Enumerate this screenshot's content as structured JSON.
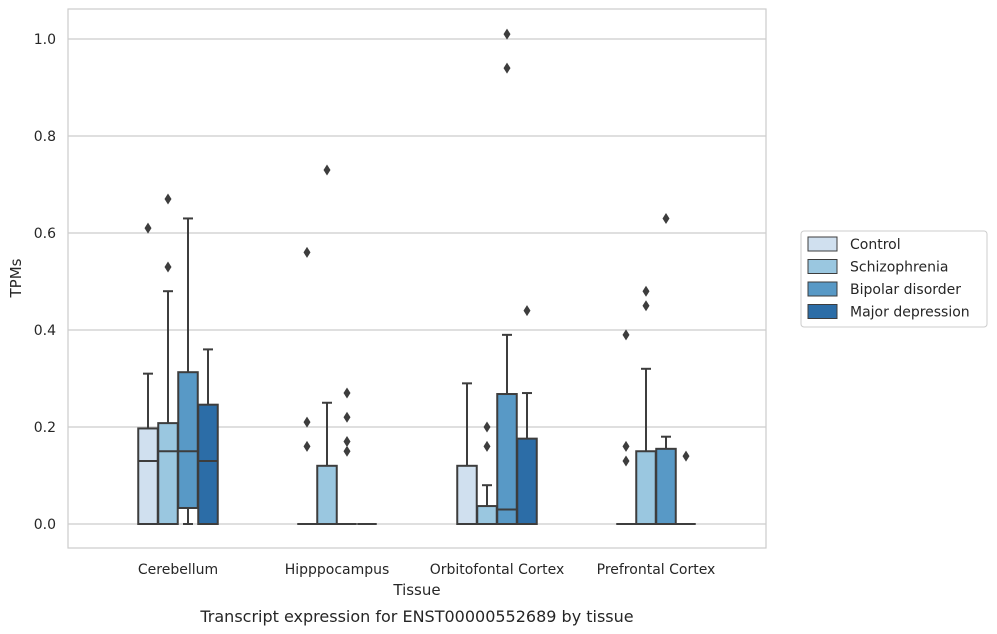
{
  "chart_data": {
    "type": "box",
    "title": "",
    "caption": "Transcript expression for ENST00000552689 by tissue",
    "xlabel": "Tissue",
    "ylabel": "TPMs",
    "ylim": [
      -0.05,
      1.06
    ],
    "yticks": [
      0.0,
      0.2,
      0.4,
      0.6,
      0.8,
      1.0
    ],
    "ytick_labels": [
      "0.0",
      "0.2",
      "0.4",
      "0.6",
      "0.8",
      "1.0"
    ],
    "grid": "horizontal",
    "legend_position": "right",
    "categories": [
      "Cerebellum",
      "Hipppocampus",
      "Orbitofontal Cortex",
      "Prefrontal Cortex"
    ],
    "series": [
      {
        "name": "Control",
        "color": "#d0e0ef",
        "boxes": [
          {
            "q1": 0.0,
            "median": 0.13,
            "q3": 0.197,
            "whislo": 0.0,
            "whishi": 0.31,
            "fliers": [
              0.61
            ]
          },
          {
            "q1": 0.0,
            "median": 0.0,
            "q3": 0.0,
            "whislo": 0.0,
            "whishi": 0.0,
            "fliers": [
              0.56,
              0.21,
              0.16
            ]
          },
          {
            "q1": 0.0,
            "median": 0.0,
            "q3": 0.12,
            "whislo": 0.0,
            "whishi": 0.29,
            "fliers": []
          },
          {
            "q1": 0.0,
            "median": 0.0,
            "q3": 0.0,
            "whislo": 0.0,
            "whishi": 0.0,
            "fliers": [
              0.39,
              0.16,
              0.13
            ]
          }
        ]
      },
      {
        "name": "Schizophrenia",
        "color": "#9ac7e0",
        "boxes": [
          {
            "q1": 0.0,
            "median": 0.15,
            "q3": 0.208,
            "whislo": 0.0,
            "whishi": 0.48,
            "fliers": [
              0.67,
              0.53
            ]
          },
          {
            "q1": 0.0,
            "median": 0.0,
            "q3": 0.12,
            "whislo": 0.0,
            "whishi": 0.25,
            "fliers": [
              0.73
            ]
          },
          {
            "q1": 0.0,
            "median": 0.0,
            "q3": 0.037,
            "whislo": 0.0,
            "whishi": 0.08,
            "fliers": [
              0.2,
              0.16
            ]
          },
          {
            "q1": 0.0,
            "median": 0.0,
            "q3": 0.15,
            "whislo": 0.0,
            "whishi": 0.32,
            "fliers": [
              0.48,
              0.45
            ]
          }
        ]
      },
      {
        "name": "Bipolar disorder",
        "color": "#5899c6",
        "boxes": [
          {
            "q1": 0.033,
            "median": 0.15,
            "q3": 0.313,
            "whislo": 0.0,
            "whishi": 0.63,
            "fliers": []
          },
          {
            "q1": 0.0,
            "median": 0.0,
            "q3": 0.0,
            "whislo": 0.0,
            "whishi": 0.0,
            "fliers": [
              0.22,
              0.17,
              0.15,
              0.27
            ]
          },
          {
            "q1": 0.0,
            "median": 0.03,
            "q3": 0.268,
            "whislo": 0.0,
            "whishi": 0.39,
            "fliers": [
              0.94,
              1.01
            ]
          },
          {
            "q1": 0.0,
            "median": 0.0,
            "q3": 0.155,
            "whislo": 0.0,
            "whishi": 0.18,
            "fliers": [
              0.63
            ]
          }
        ]
      },
      {
        "name": "Major depression",
        "color": "#2c6da7",
        "boxes": [
          {
            "q1": 0.0,
            "median": 0.13,
            "q3": 0.246,
            "whislo": 0.0,
            "whishi": 0.36,
            "fliers": []
          },
          {
            "q1": 0.0,
            "median": 0.0,
            "q3": 0.0,
            "whislo": 0.0,
            "whishi": 0.0,
            "fliers": []
          },
          {
            "q1": 0.0,
            "median": 0.0,
            "q3": 0.176,
            "whislo": 0.0,
            "whishi": 0.27,
            "fliers": [
              0.44
            ]
          },
          {
            "q1": 0.0,
            "median": 0.0,
            "q3": 0.0,
            "whislo": 0.0,
            "whishi": 0.0,
            "fliers": [
              0.14
            ]
          }
        ]
      }
    ]
  }
}
